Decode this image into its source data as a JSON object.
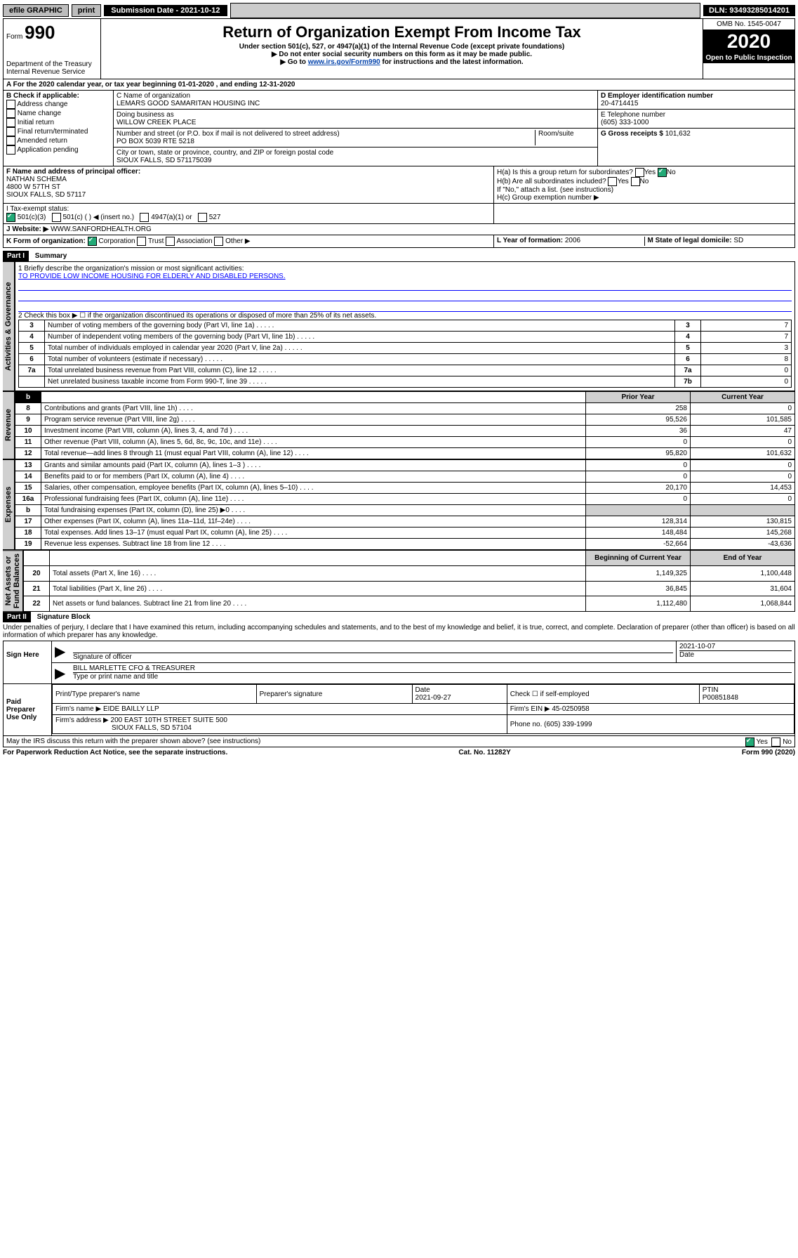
{
  "topbar": {
    "efile": "efile GRAPHIC",
    "print": "print",
    "sub_label": "Submission Date - 2021-10-12",
    "dln": "DLN: 93493285014201"
  },
  "header": {
    "form_label": "Form",
    "form_no": "990",
    "dept": "Department of the Treasury\nInternal Revenue Service",
    "title": "Return of Organization Exempt From Income Tax",
    "subtitle": "Under section 501(c), 527, or 4947(a)(1) of the Internal Revenue Code (except private foundations)",
    "note1": "▶ Do not enter social security numbers on this form as it may be made public.",
    "note2_pre": "▶ Go to ",
    "note2_link": "www.irs.gov/Form990",
    "note2_post": " for instructions and the latest information.",
    "omb": "OMB No. 1545-0047",
    "year": "2020",
    "open": "Open to Public Inspection"
  },
  "period": "A For the 2020 calendar year, or tax year beginning 01-01-2020 , and ending 12-31-2020",
  "box_b": {
    "title": "B Check if applicable:",
    "opts": [
      "Address change",
      "Name change",
      "Initial return",
      "Final return/terminated",
      "Amended return",
      "Application pending"
    ]
  },
  "box_c": {
    "name_lbl": "C Name of organization",
    "name": "LEMARS GOOD SAMARITAN HOUSING INC",
    "dba_lbl": "Doing business as",
    "dba": "WILLOW CREEK PLACE",
    "addr_lbl": "Number and street (or P.O. box if mail is not delivered to street address)",
    "addr": "PO BOX 5039 RTE 5218",
    "room_lbl": "Room/suite",
    "city_lbl": "City or town, state or province, country, and ZIP or foreign postal code",
    "city": "SIOUX FALLS, SD  571175039"
  },
  "box_d": {
    "ein_lbl": "D Employer identification number",
    "ein": "20-4714415",
    "phone_lbl": "E Telephone number",
    "phone": "(605) 333-1000",
    "gross_lbl": "G Gross receipts $ ",
    "gross": "101,632"
  },
  "box_f": {
    "lbl": "F Name and address of principal officer:",
    "name": "NATHAN SCHEMA",
    "addr1": "4800 W 57TH ST",
    "addr2": "SIOUX FALLS, SD  57117"
  },
  "box_h": {
    "a": "H(a) Is this a group return for subordinates?",
    "a_yes": "Yes",
    "a_no": "No",
    "b": "H(b) Are all subordinates included?",
    "b_note": "If \"No,\" attach a list. (see instructions)",
    "c": "H(c) Group exemption number ▶"
  },
  "tax_status": {
    "lbl": "I   Tax-exempt status:",
    "o1": "501(c)(3)",
    "o2": "501(c) (   ) ◀ (insert no.)",
    "o3": "4947(a)(1) or",
    "o4": "527"
  },
  "website": {
    "lbl": "J   Website: ▶",
    "val": "WWW.SANFORDHEALTH.ORG"
  },
  "box_k": {
    "lbl": "K Form of organization:",
    "opts": [
      "Corporation",
      "Trust",
      "Association",
      "Other ▶"
    ]
  },
  "box_l": {
    "lbl": "L Year of formation:",
    "val": "2006"
  },
  "box_m": {
    "lbl": "M State of legal domicile:",
    "val": "SD"
  },
  "part1": {
    "hdr": "Part I",
    "title": "Summary",
    "q1": "1  Briefly describe the organization's mission or most significant activities:",
    "mission": "TO PROVIDE LOW INCOME HOUSING FOR ELDERLY AND DISABLED PERSONS.",
    "q2": "2  Check this box ▶ ☐  if the organization discontinued its operations or disposed of more than 25% of its net assets.",
    "rows_small": [
      {
        "n": "3",
        "t": "Number of voting members of the governing body (Part VI, line 1a)",
        "b": "3",
        "v": "7"
      },
      {
        "n": "4",
        "t": "Number of independent voting members of the governing body (Part VI, line 1b)",
        "b": "4",
        "v": "7"
      },
      {
        "n": "5",
        "t": "Total number of individuals employed in calendar year 2020 (Part V, line 2a)",
        "b": "5",
        "v": "3"
      },
      {
        "n": "6",
        "t": "Total number of volunteers (estimate if necessary)",
        "b": "6",
        "v": "8"
      },
      {
        "n": "7a",
        "t": "Total unrelated business revenue from Part VIII, column (C), line 12",
        "b": "7a",
        "v": "0"
      },
      {
        "n": "",
        "t": "Net unrelated business taxable income from Form 990-T, line 39",
        "b": "7b",
        "v": "0"
      }
    ],
    "col_prior": "Prior Year",
    "col_curr": "Current Year",
    "revenue": [
      {
        "n": "8",
        "t": "Contributions and grants (Part VIII, line 1h)",
        "p": "258",
        "c": "0"
      },
      {
        "n": "9",
        "t": "Program service revenue (Part VIII, line 2g)",
        "p": "95,526",
        "c": "101,585"
      },
      {
        "n": "10",
        "t": "Investment income (Part VIII, column (A), lines 3, 4, and 7d )",
        "p": "36",
        "c": "47"
      },
      {
        "n": "11",
        "t": "Other revenue (Part VIII, column (A), lines 5, 6d, 8c, 9c, 10c, and 11e)",
        "p": "0",
        "c": "0"
      },
      {
        "n": "12",
        "t": "Total revenue—add lines 8 through 11 (must equal Part VIII, column (A), line 12)",
        "p": "95,820",
        "c": "101,632"
      }
    ],
    "expenses": [
      {
        "n": "13",
        "t": "Grants and similar amounts paid (Part IX, column (A), lines 1–3 )",
        "p": "0",
        "c": "0"
      },
      {
        "n": "14",
        "t": "Benefits paid to or for members (Part IX, column (A), line 4)",
        "p": "0",
        "c": "0"
      },
      {
        "n": "15",
        "t": "Salaries, other compensation, employee benefits (Part IX, column (A), lines 5–10)",
        "p": "20,170",
        "c": "14,453"
      },
      {
        "n": "16a",
        "t": "Professional fundraising fees (Part IX, column (A), line 11e)",
        "p": "0",
        "c": "0"
      },
      {
        "n": "b",
        "t": "Total fundraising expenses (Part IX, column (D), line 25)  ▶0",
        "p": "",
        "c": "",
        "shade": true
      },
      {
        "n": "17",
        "t": "Other expenses (Part IX, column (A), lines 11a–11d, 11f–24e)",
        "p": "128,314",
        "c": "130,815"
      },
      {
        "n": "18",
        "t": "Total expenses. Add lines 13–17 (must equal Part IX, column (A), line 25)",
        "p": "148,484",
        "c": "145,268"
      },
      {
        "n": "19",
        "t": "Revenue less expenses. Subtract line 18 from line 12",
        "p": "-52,664",
        "c": "-43,636"
      }
    ],
    "col_beg": "Beginning of Current Year",
    "col_end": "End of Year",
    "net": [
      {
        "n": "20",
        "t": "Total assets (Part X, line 16)",
        "p": "1,149,325",
        "c": "1,100,448"
      },
      {
        "n": "21",
        "t": "Total liabilities (Part X, line 26)",
        "p": "36,845",
        "c": "31,604"
      },
      {
        "n": "22",
        "t": "Net assets or fund balances. Subtract line 21 from line 20",
        "p": "1,112,480",
        "c": "1,068,844"
      }
    ],
    "side_gov": "Activities & Governance",
    "side_rev": "Revenue",
    "side_exp": "Expenses",
    "side_net": "Net Assets or\nFund Balances"
  },
  "part2": {
    "hdr": "Part II",
    "title": "Signature Block",
    "perjury": "Under penalties of perjury, I declare that I have examined this return, including accompanying schedules and statements, and to the best of my knowledge and belief, it is true, correct, and complete. Declaration of preparer (other than officer) is based on all information of which preparer has any knowledge.",
    "sign_here": "Sign Here",
    "sig_officer": "Signature of officer",
    "sig_date": "2021-10-07",
    "date_lbl": "Date",
    "officer_name": "BILL MARLETTE CFO & TREASURER",
    "type_lbl": "Type or print name and title",
    "paid": "Paid Preparer Use Only",
    "prep_name_lbl": "Print/Type preparer's name",
    "prep_sig_lbl": "Preparer's signature",
    "prep_date_lbl": "Date",
    "prep_date": "2021-09-27",
    "self_emp": "Check ☐ if self-employed",
    "ptin_lbl": "PTIN",
    "ptin": "P00851848",
    "firm_name_lbl": "Firm's name   ▶",
    "firm_name": "EIDE BAILLY LLP",
    "firm_ein_lbl": "Firm's EIN ▶",
    "firm_ein": "45-0250958",
    "firm_addr_lbl": "Firm's address ▶",
    "firm_addr": "200 EAST 10TH STREET SUITE 500",
    "firm_city": "SIOUX FALLS, SD  57104",
    "phone_lbl": "Phone no.",
    "phone": "(605) 339-1999",
    "discuss": "May the IRS discuss this return with the preparer shown above? (see instructions)",
    "yes": "Yes",
    "no": "No"
  },
  "footer": {
    "pra": "For Paperwork Reduction Act Notice, see the separate instructions.",
    "cat": "Cat. No. 11282Y",
    "form": "Form 990 (2020)"
  },
  "colors": {
    "link": "#0645ad",
    "header_bg": "#000000",
    "shade": "#d0d0d0"
  }
}
